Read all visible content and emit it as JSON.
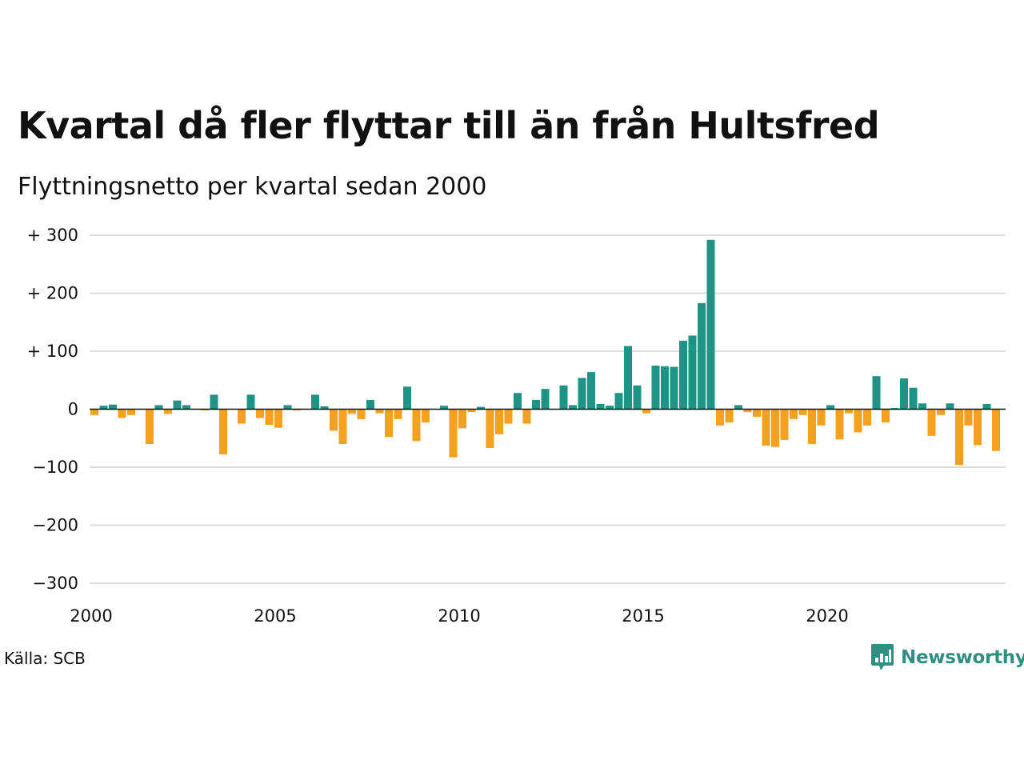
{
  "title": "Kvartal då fler flyttar till än från Hultsfred",
  "subtitle": "Flyttningsnetto per kvartal sedan 2000",
  "source": "Källa: SCB",
  "brand": "Newsworthy",
  "colors": {
    "positive": "#1f9486",
    "negative": "#f5a01e",
    "grid": "#dddddd",
    "zero": "#111111",
    "brand": "#2e8f82"
  },
  "chart_data": {
    "type": "bar",
    "ylim": [
      -300,
      300
    ],
    "grid": true,
    "yticks": [
      {
        "value": 300,
        "label": "+ 300"
      },
      {
        "value": 200,
        "label": "+ 200"
      },
      {
        "value": 100,
        "label": "+ 100"
      },
      {
        "value": 0,
        "label": "0"
      },
      {
        "value": -100,
        "label": "−100"
      },
      {
        "value": -200,
        "label": "−200"
      },
      {
        "value": -300,
        "label": "−300"
      }
    ],
    "xticks": [
      {
        "year": 2000,
        "label": "2000"
      },
      {
        "year": 2005,
        "label": "2005"
      },
      {
        "year": 2010,
        "label": "2010"
      },
      {
        "year": 2015,
        "label": "2015"
      },
      {
        "year": 2020,
        "label": "2020"
      }
    ],
    "start": "2000 Q1",
    "values": [
      -10,
      6,
      8,
      -15,
      -10,
      0,
      -60,
      7,
      -8,
      15,
      7,
      0,
      -2,
      25,
      -78,
      0,
      -25,
      25,
      -15,
      -27,
      -32,
      7,
      -2,
      0,
      25,
      5,
      -37,
      -60,
      -8,
      -17,
      16,
      -7,
      -48,
      -17,
      39,
      -55,
      -23,
      0,
      6,
      -83,
      -33,
      -5,
      4,
      -67,
      -43,
      -25,
      28,
      -25,
      16,
      35,
      0,
      41,
      7,
      54,
      64,
      9,
      6,
      28,
      109,
      41,
      -7,
      75,
      74,
      73,
      118,
      127,
      183,
      292,
      -28,
      -23,
      7,
      -5,
      -13,
      -63,
      -65,
      -53,
      -17,
      -10,
      -60,
      -28,
      7,
      -52,
      -7,
      -40,
      -28,
      57,
      -23,
      2,
      53,
      37,
      10,
      -46,
      -10,
      10,
      -96,
      -28,
      -62,
      9,
      -72
    ]
  }
}
